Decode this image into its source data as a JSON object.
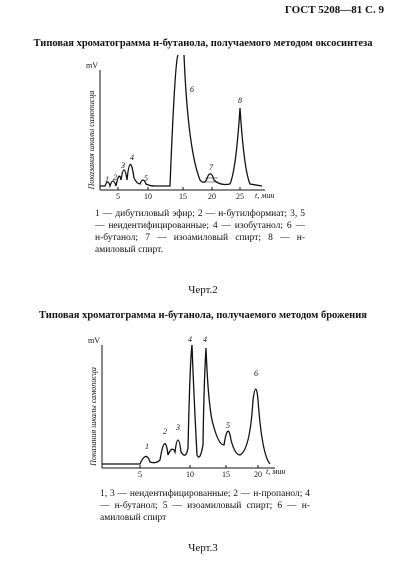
{
  "header": "ГОСТ 5208—81 С. 9",
  "figures": [
    {
      "title": "Типовая хроматограмма н-бутанола, получаемого методом оксосинтеза",
      "y_unit": "mV",
      "y_label": "Показания шкалы самописца",
      "x_ticks": [
        "5",
        "10",
        "15",
        "20",
        "25"
      ],
      "x_label": "t, мин",
      "peak_labels": [
        "1",
        "2",
        "3",
        "4",
        "5",
        "6",
        "7",
        "8"
      ],
      "legend": "1 — дибутиловый эфир; 2 — н-бутилформиат; 3, 5 — неидентифицированные; 4 — изобутанол; 6 — н-бутанол; 7 — изоамиловый спирт; 8 — н-амиловый спирт.",
      "caption": "Черт.2"
    },
    {
      "title": "Типовая хроматограмма н-бутанола, получаемого методом брожения",
      "y_unit": "mV",
      "y_label": "Показания шкалы самописца",
      "x_ticks": [
        "5",
        "10",
        "15",
        "20"
      ],
      "x_label": "t, мин",
      "peak_labels": [
        "1",
        "2",
        "3",
        "4",
        "4",
        "5",
        "6"
      ],
      "legend": "1, 3 — неидентифицированные; 2 — н-пропанол; 4 — н-бутанол; 5 — изоамиловый спирт; 6 — н-амиловый спирт",
      "caption": "Черт.3"
    }
  ]
}
